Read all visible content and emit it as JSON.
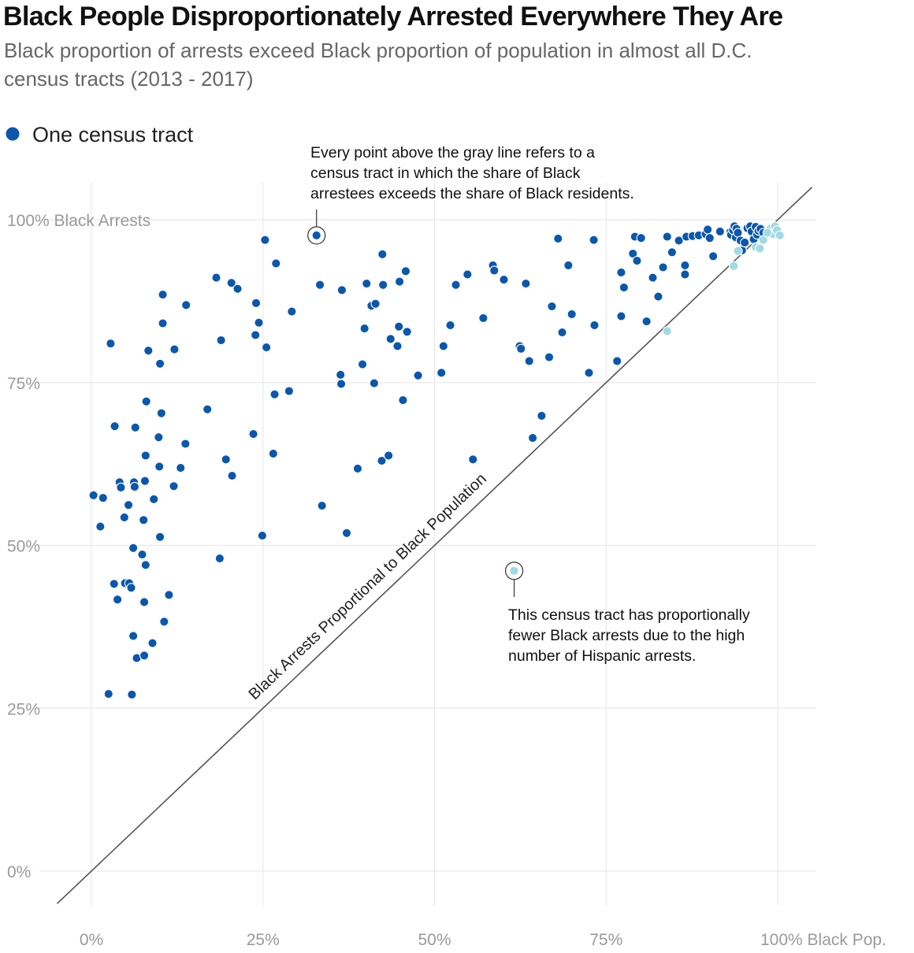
{
  "title": "Black People Disproportionately Arrested Everywhere They Are",
  "subtitle": "Black proportion of arrests exceed Black proportion of population in almost all D.C. census tracts (2013 - 2017)",
  "legend": {
    "label": "One census tract",
    "color": "#0a57ad"
  },
  "colors": {
    "dark_point": "#0a57ad",
    "light_point": "#a2d9e4",
    "diagonal": "#555555",
    "grid": "#e6e6e6",
    "tick_text": "#9a9a9a"
  },
  "annotations": {
    "top": [
      "Every point above the gray line refers to a",
      "census tract in which the share of Black",
      "arrestees exceeds the share of Black residents."
    ],
    "bottom": [
      "This census tract has proportionally",
      "fewer Black arrests due to the high",
      "number of Hispanic arrests."
    ],
    "diagonal_label": "Black Arrests Proportional to Black Population"
  },
  "chart_data": {
    "type": "scatter",
    "xlabel": "Black Pop.",
    "ylabel": "Black Arrests",
    "xlim": [
      0,
      100
    ],
    "ylim": [
      0,
      100
    ],
    "x_ticks": [
      {
        "value": 0,
        "label": "0%"
      },
      {
        "value": 25,
        "label": "25%"
      },
      {
        "value": 50,
        "label": "50%"
      },
      {
        "value": 75,
        "label": "75%"
      },
      {
        "value": 100,
        "label": "100% Black Pop."
      }
    ],
    "y_ticks": [
      {
        "value": 0,
        "label": "0%"
      },
      {
        "value": 25,
        "label": "25%"
      },
      {
        "value": 50,
        "label": "50%"
      },
      {
        "value": 75,
        "label": "75%"
      },
      {
        "value": 100,
        "label": "100% Black Arrests"
      }
    ],
    "grid": true,
    "reference_line": {
      "from": [
        -5,
        -5
      ],
      "to": [
        105,
        105
      ]
    },
    "highlighted_points": [
      {
        "x": 32.8,
        "y": 97.6,
        "category": "dark"
      },
      {
        "x": 61.6,
        "y": 46.1,
        "category": "light"
      }
    ],
    "points": [
      {
        "x": 0.3,
        "y": 57.7,
        "category": "dark"
      },
      {
        "x": 1.3,
        "y": 52.9,
        "category": "dark"
      },
      {
        "x": 1.7,
        "y": 57.3,
        "category": "dark"
      },
      {
        "x": 2.5,
        "y": 27.2,
        "category": "dark"
      },
      {
        "x": 2.8,
        "y": 81.0,
        "category": "dark"
      },
      {
        "x": 3.3,
        "y": 44.1,
        "category": "dark"
      },
      {
        "x": 3.4,
        "y": 68.3,
        "category": "dark"
      },
      {
        "x": 3.8,
        "y": 41.7,
        "category": "dark"
      },
      {
        "x": 4.1,
        "y": 59.7,
        "category": "dark"
      },
      {
        "x": 4.3,
        "y": 58.9,
        "category": "dark"
      },
      {
        "x": 4.8,
        "y": 54.3,
        "category": "dark"
      },
      {
        "x": 4.9,
        "y": 44.2,
        "category": "dark"
      },
      {
        "x": 5.4,
        "y": 56.2,
        "category": "dark"
      },
      {
        "x": 5.5,
        "y": 44.2,
        "category": "dark"
      },
      {
        "x": 5.8,
        "y": 43.5,
        "category": "dark"
      },
      {
        "x": 5.9,
        "y": 27.1,
        "category": "dark"
      },
      {
        "x": 6.1,
        "y": 36.1,
        "category": "dark"
      },
      {
        "x": 6.1,
        "y": 49.6,
        "category": "dark"
      },
      {
        "x": 6.2,
        "y": 59.7,
        "category": "dark"
      },
      {
        "x": 6.3,
        "y": 59.0,
        "category": "dark"
      },
      {
        "x": 6.4,
        "y": 68.1,
        "category": "dark"
      },
      {
        "x": 6.6,
        "y": 32.7,
        "category": "dark"
      },
      {
        "x": 7.4,
        "y": 48.6,
        "category": "dark"
      },
      {
        "x": 7.6,
        "y": 53.9,
        "category": "dark"
      },
      {
        "x": 7.7,
        "y": 41.3,
        "category": "dark"
      },
      {
        "x": 7.7,
        "y": 33.1,
        "category": "dark"
      },
      {
        "x": 7.8,
        "y": 59.9,
        "category": "dark"
      },
      {
        "x": 7.9,
        "y": 47.0,
        "category": "dark"
      },
      {
        "x": 7.9,
        "y": 63.8,
        "category": "dark"
      },
      {
        "x": 8.0,
        "y": 72.1,
        "category": "dark"
      },
      {
        "x": 8.3,
        "y": 79.9,
        "category": "dark"
      },
      {
        "x": 8.9,
        "y": 35.0,
        "category": "dark"
      },
      {
        "x": 9.1,
        "y": 57.1,
        "category": "dark"
      },
      {
        "x": 9.8,
        "y": 66.6,
        "category": "dark"
      },
      {
        "x": 9.9,
        "y": 62.1,
        "category": "dark"
      },
      {
        "x": 10.0,
        "y": 51.3,
        "category": "dark"
      },
      {
        "x": 10.0,
        "y": 77.9,
        "category": "dark"
      },
      {
        "x": 10.2,
        "y": 70.3,
        "category": "dark"
      },
      {
        "x": 10.4,
        "y": 88.5,
        "category": "dark"
      },
      {
        "x": 10.4,
        "y": 84.1,
        "category": "dark"
      },
      {
        "x": 10.6,
        "y": 38.3,
        "category": "dark"
      },
      {
        "x": 11.3,
        "y": 42.4,
        "category": "dark"
      },
      {
        "x": 12.0,
        "y": 59.1,
        "category": "dark"
      },
      {
        "x": 12.1,
        "y": 80.1,
        "category": "dark"
      },
      {
        "x": 13.0,
        "y": 61.9,
        "category": "dark"
      },
      {
        "x": 13.7,
        "y": 65.6,
        "category": "dark"
      },
      {
        "x": 13.8,
        "y": 86.9,
        "category": "dark"
      },
      {
        "x": 16.9,
        "y": 70.9,
        "category": "dark"
      },
      {
        "x": 18.2,
        "y": 91.1,
        "category": "dark"
      },
      {
        "x": 18.7,
        "y": 48.0,
        "category": "dark"
      },
      {
        "x": 18.9,
        "y": 81.5,
        "category": "dark"
      },
      {
        "x": 19.6,
        "y": 63.2,
        "category": "dark"
      },
      {
        "x": 20.4,
        "y": 90.3,
        "category": "dark"
      },
      {
        "x": 20.5,
        "y": 60.7,
        "category": "dark"
      },
      {
        "x": 21.3,
        "y": 89.4,
        "category": "dark"
      },
      {
        "x": 23.6,
        "y": 67.1,
        "category": "dark"
      },
      {
        "x": 23.9,
        "y": 82.3,
        "category": "dark"
      },
      {
        "x": 24.0,
        "y": 87.2,
        "category": "dark"
      },
      {
        "x": 24.4,
        "y": 84.2,
        "category": "dark"
      },
      {
        "x": 24.9,
        "y": 51.5,
        "category": "dark"
      },
      {
        "x": 25.3,
        "y": 96.9,
        "category": "dark"
      },
      {
        "x": 25.5,
        "y": 80.4,
        "category": "dark"
      },
      {
        "x": 26.5,
        "y": 64.1,
        "category": "dark"
      },
      {
        "x": 26.7,
        "y": 73.2,
        "category": "dark"
      },
      {
        "x": 26.9,
        "y": 93.3,
        "category": "dark"
      },
      {
        "x": 28.8,
        "y": 73.7,
        "category": "dark"
      },
      {
        "x": 29.2,
        "y": 85.9,
        "category": "dark"
      },
      {
        "x": 33.3,
        "y": 90.0,
        "category": "dark"
      },
      {
        "x": 33.6,
        "y": 56.1,
        "category": "dark"
      },
      {
        "x": 36.3,
        "y": 76.2,
        "category": "dark"
      },
      {
        "x": 36.4,
        "y": 74.8,
        "category": "dark"
      },
      {
        "x": 36.5,
        "y": 89.2,
        "category": "dark"
      },
      {
        "x": 37.2,
        "y": 51.9,
        "category": "dark"
      },
      {
        "x": 38.8,
        "y": 61.8,
        "category": "dark"
      },
      {
        "x": 39.5,
        "y": 77.8,
        "category": "dark"
      },
      {
        "x": 39.8,
        "y": 83.3,
        "category": "dark"
      },
      {
        "x": 40.1,
        "y": 90.2,
        "category": "dark"
      },
      {
        "x": 40.8,
        "y": 86.8,
        "category": "dark"
      },
      {
        "x": 41.2,
        "y": 74.9,
        "category": "dark"
      },
      {
        "x": 41.4,
        "y": 87.1,
        "category": "dark"
      },
      {
        "x": 42.3,
        "y": 63.0,
        "category": "dark"
      },
      {
        "x": 42.4,
        "y": 94.7,
        "category": "dark"
      },
      {
        "x": 42.5,
        "y": 90.0,
        "category": "dark"
      },
      {
        "x": 43.3,
        "y": 63.8,
        "category": "dark"
      },
      {
        "x": 43.6,
        "y": 81.7,
        "category": "dark"
      },
      {
        "x": 44.6,
        "y": 80.6,
        "category": "dark"
      },
      {
        "x": 44.8,
        "y": 83.6,
        "category": "dark"
      },
      {
        "x": 44.9,
        "y": 90.5,
        "category": "dark"
      },
      {
        "x": 45.4,
        "y": 72.3,
        "category": "dark"
      },
      {
        "x": 45.8,
        "y": 92.1,
        "category": "dark"
      },
      {
        "x": 46.0,
        "y": 82.8,
        "category": "dark"
      },
      {
        "x": 47.6,
        "y": 76.1,
        "category": "dark"
      },
      {
        "x": 51.0,
        "y": 76.5,
        "category": "dark"
      },
      {
        "x": 51.3,
        "y": 80.6,
        "category": "dark"
      },
      {
        "x": 52.3,
        "y": 83.8,
        "category": "dark"
      },
      {
        "x": 53.1,
        "y": 90.0,
        "category": "dark"
      },
      {
        "x": 54.8,
        "y": 91.6,
        "category": "dark"
      },
      {
        "x": 55.6,
        "y": 63.2,
        "category": "dark"
      },
      {
        "x": 57.1,
        "y": 84.9,
        "category": "dark"
      },
      {
        "x": 58.5,
        "y": 93.0,
        "category": "dark"
      },
      {
        "x": 58.7,
        "y": 92.2,
        "category": "dark"
      },
      {
        "x": 60.1,
        "y": 90.8,
        "category": "dark"
      },
      {
        "x": 62.4,
        "y": 80.6,
        "category": "dark"
      },
      {
        "x": 62.6,
        "y": 80.2,
        "category": "dark"
      },
      {
        "x": 63.3,
        "y": 90.2,
        "category": "dark"
      },
      {
        "x": 63.8,
        "y": 78.3,
        "category": "dark"
      },
      {
        "x": 64.3,
        "y": 66.5,
        "category": "dark"
      },
      {
        "x": 65.6,
        "y": 69.9,
        "category": "dark"
      },
      {
        "x": 66.7,
        "y": 78.9,
        "category": "dark"
      },
      {
        "x": 67.1,
        "y": 86.7,
        "category": "dark"
      },
      {
        "x": 68.0,
        "y": 97.1,
        "category": "dark"
      },
      {
        "x": 68.6,
        "y": 82.7,
        "category": "dark"
      },
      {
        "x": 69.5,
        "y": 93.0,
        "category": "dark"
      },
      {
        "x": 70.0,
        "y": 85.5,
        "category": "dark"
      },
      {
        "x": 72.5,
        "y": 76.5,
        "category": "dark"
      },
      {
        "x": 73.2,
        "y": 96.9,
        "category": "dark"
      },
      {
        "x": 73.3,
        "y": 83.8,
        "category": "dark"
      },
      {
        "x": 76.6,
        "y": 78.3,
        "category": "dark"
      },
      {
        "x": 77.2,
        "y": 91.9,
        "category": "dark"
      },
      {
        "x": 77.2,
        "y": 85.2,
        "category": "dark"
      },
      {
        "x": 77.6,
        "y": 89.6,
        "category": "dark"
      },
      {
        "x": 78.9,
        "y": 94.8,
        "category": "dark"
      },
      {
        "x": 79.2,
        "y": 97.4,
        "category": "dark"
      },
      {
        "x": 79.5,
        "y": 93.7,
        "category": "dark"
      },
      {
        "x": 80.1,
        "y": 97.2,
        "category": "dark"
      },
      {
        "x": 80.9,
        "y": 84.4,
        "category": "dark"
      },
      {
        "x": 81.8,
        "y": 91.1,
        "category": "dark"
      },
      {
        "x": 82.6,
        "y": 88.2,
        "category": "dark"
      },
      {
        "x": 83.3,
        "y": 92.7,
        "category": "dark"
      },
      {
        "x": 83.9,
        "y": 97.4,
        "category": "dark"
      },
      {
        "x": 84.6,
        "y": 95.0,
        "category": "dark"
      },
      {
        "x": 85.6,
        "y": 96.8,
        "category": "dark"
      },
      {
        "x": 86.5,
        "y": 93.0,
        "category": "dark"
      },
      {
        "x": 86.7,
        "y": 97.4,
        "category": "dark"
      },
      {
        "x": 86.5,
        "y": 91.6,
        "category": "dark"
      },
      {
        "x": 87.6,
        "y": 97.5,
        "category": "dark"
      },
      {
        "x": 88.5,
        "y": 97.6,
        "category": "dark"
      },
      {
        "x": 89.5,
        "y": 97.8,
        "category": "dark"
      },
      {
        "x": 89.8,
        "y": 98.5,
        "category": "dark"
      },
      {
        "x": 90.1,
        "y": 97.2,
        "category": "dark"
      },
      {
        "x": 90.6,
        "y": 94.4,
        "category": "dark"
      },
      {
        "x": 91.6,
        "y": 98.2,
        "category": "dark"
      },
      {
        "x": 93.1,
        "y": 98.1,
        "category": "dark"
      },
      {
        "x": 93.2,
        "y": 97.7,
        "category": "dark"
      },
      {
        "x": 93.5,
        "y": 98.4,
        "category": "dark"
      },
      {
        "x": 93.7,
        "y": 99.0,
        "category": "dark"
      },
      {
        "x": 93.9,
        "y": 97.3,
        "category": "dark"
      },
      {
        "x": 94.0,
        "y": 98.6,
        "category": "dark"
      },
      {
        "x": 94.2,
        "y": 98.0,
        "category": "dark"
      },
      {
        "x": 94.6,
        "y": 96.8,
        "category": "dark"
      },
      {
        "x": 94.8,
        "y": 95.3,
        "category": "dark"
      },
      {
        "x": 95.2,
        "y": 96.5,
        "category": "dark"
      },
      {
        "x": 95.6,
        "y": 98.7,
        "category": "dark"
      },
      {
        "x": 96.0,
        "y": 99.0,
        "category": "dark"
      },
      {
        "x": 96.2,
        "y": 98.2,
        "category": "dark"
      },
      {
        "x": 96.5,
        "y": 97.0,
        "category": "dark"
      },
      {
        "x": 96.8,
        "y": 98.9,
        "category": "dark"
      },
      {
        "x": 97.0,
        "y": 97.7,
        "category": "dark"
      },
      {
        "x": 97.2,
        "y": 98.3,
        "category": "dark"
      },
      {
        "x": 97.5,
        "y": 98.6,
        "category": "dark"
      },
      {
        "x": 97.9,
        "y": 98.0,
        "category": "dark"
      },
      {
        "x": 83.9,
        "y": 82.9,
        "category": "light"
      },
      {
        "x": 93.6,
        "y": 92.9,
        "category": "light"
      },
      {
        "x": 94.2,
        "y": 95.2,
        "category": "light"
      },
      {
        "x": 96.8,
        "y": 95.8,
        "category": "light"
      },
      {
        "x": 97.4,
        "y": 95.6,
        "category": "light"
      },
      {
        "x": 97.9,
        "y": 96.9,
        "category": "light"
      },
      {
        "x": 98.9,
        "y": 98.6,
        "category": "light"
      },
      {
        "x": 99.3,
        "y": 97.8,
        "category": "light"
      },
      {
        "x": 99.6,
        "y": 99.0,
        "category": "light"
      },
      {
        "x": 99.9,
        "y": 98.4,
        "category": "light"
      },
      {
        "x": 100.3,
        "y": 97.6,
        "category": "light"
      },
      {
        "x": 98.5,
        "y": 98.0,
        "category": "light"
      }
    ]
  }
}
